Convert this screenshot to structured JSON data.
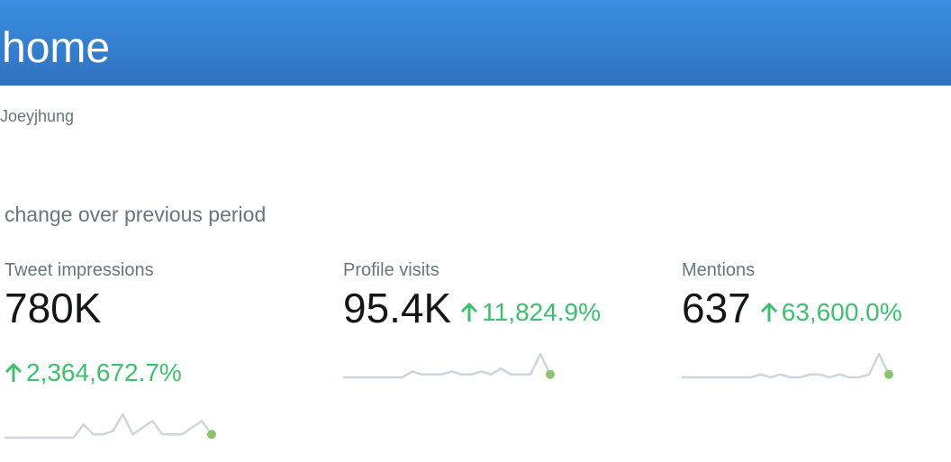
{
  "header": {
    "title": "home"
  },
  "account": {
    "name": "Joeyjhung"
  },
  "section": {
    "title": "change over previous period"
  },
  "cards": [
    {
      "label": "Tweet impressions",
      "value": "780K",
      "change": "2,364,672.7%",
      "sparkline": [
        0,
        0,
        0,
        0,
        0,
        0,
        0,
        0,
        4,
        1,
        1,
        2,
        7,
        1,
        3,
        5,
        1,
        1,
        1,
        3,
        5,
        1
      ]
    },
    {
      "label": "Profile visits",
      "value": "95.4K",
      "change": "11,824.9%",
      "sparkline": [
        0,
        0,
        0,
        0,
        0,
        0,
        0,
        2,
        1,
        1,
        1,
        2,
        1,
        1,
        2,
        1,
        3,
        1,
        1,
        1,
        8,
        1
      ]
    },
    {
      "label": "Mentions",
      "value": "637",
      "change": "63,600.0%",
      "sparkline": [
        0,
        0,
        0,
        0,
        0,
        0,
        0,
        0,
        1,
        0,
        1,
        0,
        0,
        1,
        1,
        0,
        1,
        0,
        0,
        1,
        8,
        1
      ]
    }
  ]
}
